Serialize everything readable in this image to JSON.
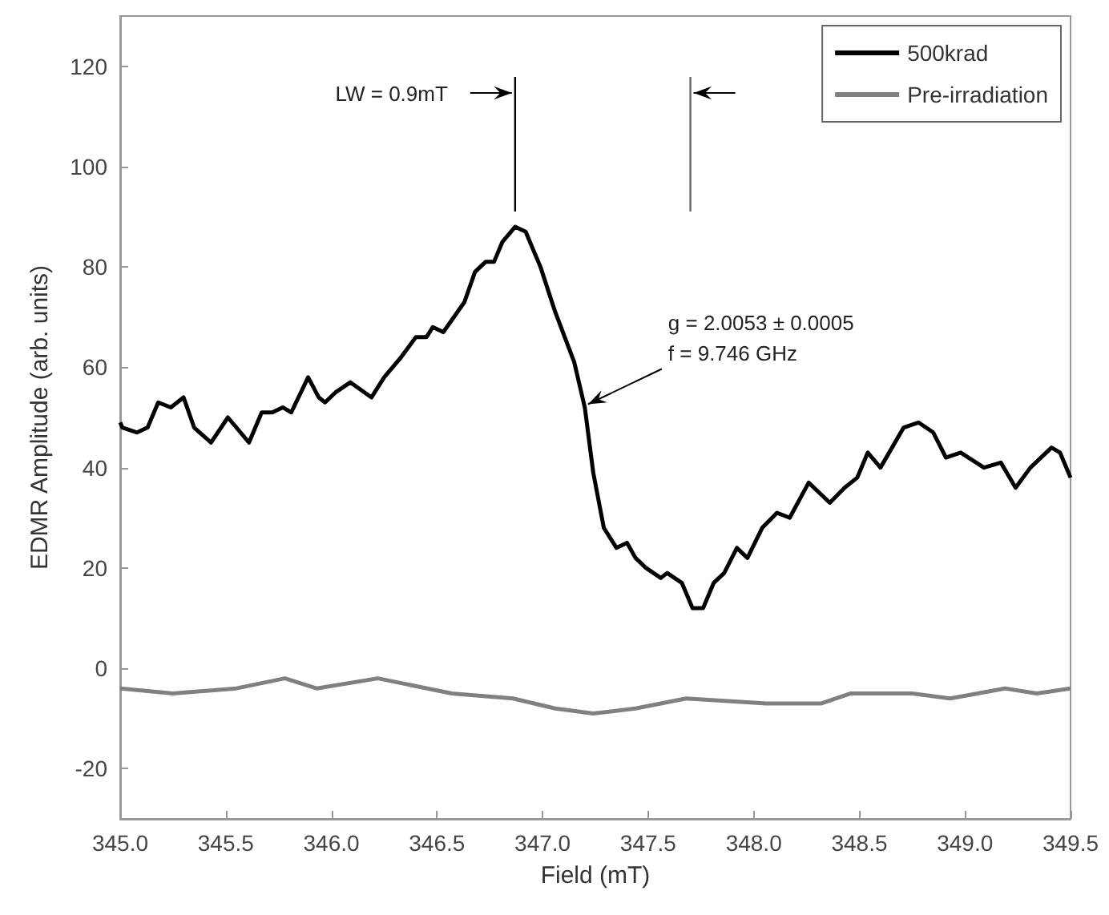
{
  "chart_data": {
    "type": "line",
    "xlabel": "Field (mT)",
    "ylabel": "EDMR Amplitude (arb. units)",
    "xlim": [
      345,
      349.5
    ],
    "xticks": [
      {
        "value": 345,
        "label": "345.0"
      },
      {
        "value": 345.5,
        "label": "345.5"
      },
      {
        "value": 346,
        "label": "346.0"
      },
      {
        "value": 346.5,
        "label": "346.5"
      },
      {
        "value": 347,
        "label": "347.0"
      },
      {
        "value": 347.5,
        "label": "347.5"
      },
      {
        "value": 348,
        "label": "348.0"
      },
      {
        "value": 348.5,
        "label": "348.5"
      },
      {
        "value": 349,
        "label": "349.0"
      },
      {
        "value": 349.5,
        "label": "349.5"
      }
    ],
    "ylim": [
      -30,
      130
    ],
    "yticks": [
      -20,
      0,
      20,
      40,
      60,
      80,
      100,
      120
    ],
    "grid": false,
    "legend": "top right",
    "marker": "none",
    "line_style": "solid",
    "ref_lines": [
      {
        "axis": "x",
        "value": 346.87,
        "label": null
      },
      {
        "axis": "x",
        "value": 347.7,
        "label": null
      }
    ],
    "annotations": [
      "LW = 0.9mT",
      {
        "text": "g = 2.0053 ± 0.0005\nf = 9.746 GHz",
        "x": 347.2,
        "y": 52
      }
    ],
    "series": [
      {
        "name": "500krad",
        "color": "#000000",
        "x": [
          345.0,
          345.01,
          345.08,
          345.13,
          345.18,
          345.24,
          345.3,
          345.35,
          345.43,
          345.51,
          345.61,
          345.67,
          345.72,
          345.77,
          345.81,
          345.89,
          345.94,
          345.97,
          346.02,
          346.09,
          346.19,
          346.25,
          346.33,
          346.4,
          346.45,
          346.48,
          346.53,
          346.58,
          346.63,
          346.68,
          346.73,
          346.77,
          346.81,
          346.87,
          346.92,
          346.99,
          347.06,
          347.15,
          347.2,
          347.24,
          347.29,
          347.35,
          347.4,
          347.44,
          347.49,
          347.56,
          347.59,
          347.66,
          347.71,
          347.76,
          347.81,
          347.86,
          347.92,
          347.97,
          348.04,
          348.11,
          348.17,
          348.26,
          348.36,
          348.43,
          348.49,
          348.54,
          348.6,
          348.71,
          348.78,
          348.85,
          348.91,
          348.98,
          349.09,
          349.17,
          349.24,
          349.31,
          349.41,
          349.45,
          349.5
        ],
        "values": [
          49,
          48,
          47,
          48,
          53,
          52,
          54,
          48,
          45,
          50,
          45,
          51,
          51,
          52,
          51,
          58,
          54,
          53,
          55,
          57,
          54,
          58,
          62,
          66,
          66,
          68,
          67,
          70,
          73,
          79,
          81,
          81,
          85,
          88,
          87,
          80,
          71,
          61,
          52,
          39,
          28,
          24,
          25,
          22,
          20,
          18,
          19,
          17,
          12,
          12,
          17,
          19,
          24,
          22,
          28,
          31,
          30,
          37,
          33,
          36,
          38,
          43,
          40,
          48,
          49,
          47,
          42,
          43,
          40,
          41,
          36,
          40,
          44,
          43,
          38
        ]
      },
      {
        "name": "Pre-irradiation",
        "color": "#808080",
        "x": [
          345.0,
          345.25,
          345.55,
          345.78,
          345.93,
          346.22,
          346.57,
          346.86,
          347.06,
          347.24,
          347.44,
          347.68,
          348.06,
          348.32,
          348.46,
          348.75,
          348.93,
          349.19,
          349.34,
          349.5
        ],
        "values": [
          -4,
          -5,
          -4,
          -2,
          -4,
          -2,
          -5,
          -6,
          -8,
          -9,
          -8,
          -6,
          -7,
          -7,
          -5,
          -5,
          -6,
          -4,
          -5,
          -4
        ]
      }
    ]
  }
}
